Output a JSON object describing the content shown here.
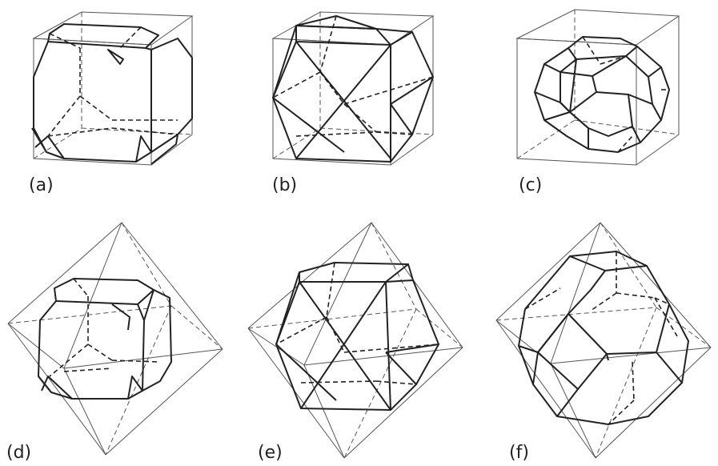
{
  "figure": {
    "panels": [
      {
        "label": "(a)",
        "container": "cube",
        "solid": "truncated cube"
      },
      {
        "label": "(b)",
        "container": "cube",
        "solid": "cuboctahedron"
      },
      {
        "label": "(c)",
        "container": "cube",
        "solid": "truncated octahedron"
      },
      {
        "label": "(d)",
        "container": "octahedron",
        "solid": "truncated cube"
      },
      {
        "label": "(e)",
        "container": "octahedron",
        "solid": "cuboctahedron"
      },
      {
        "label": "(f)",
        "container": "octahedron",
        "solid": "truncated octahedron"
      }
    ]
  },
  "colors": {
    "line": "#222222",
    "container_line": "#555555",
    "background": "#ffffff"
  }
}
